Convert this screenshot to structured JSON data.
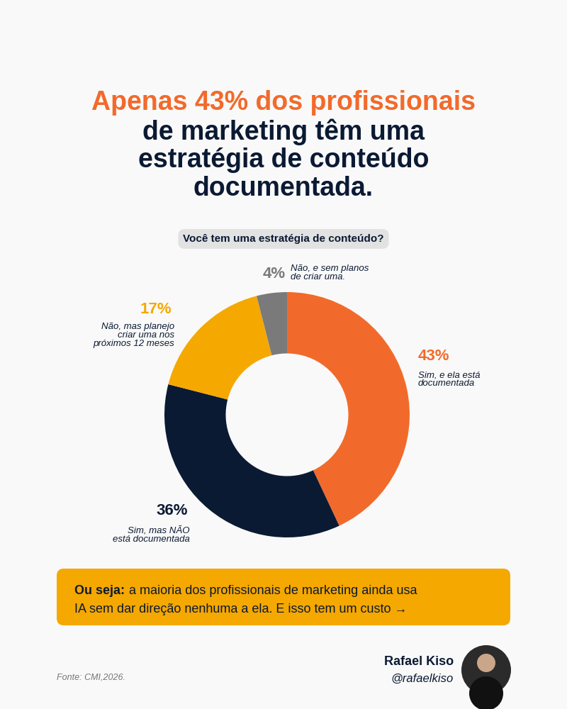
{
  "chart_data": {
    "type": "donut",
    "title": [
      "Apenas 43% dos profissionais",
      "de marketing têm uma",
      "estratégia de conteúdo",
      "documentada."
    ],
    "subtitle": "Você tem uma estratégia de conteúdo?",
    "categories": [
      "Sim, e ela está\ndocumentada",
      "Sim, mas NÃO\nestá documentada",
      "Não, mas planejo\ncriar uma nos\npróximos 12 meses",
      "Não, e sem planos\nde criar uma."
    ],
    "values": [
      43,
      36,
      17,
      4
    ],
    "value_labels": [
      "43%",
      "36%",
      "17%",
      "4%"
    ],
    "colors": [
      "#f26a2b",
      "#0b1a33",
      "#f5a800",
      "#7a7a7a"
    ],
    "data_labels": true,
    "callout": [
      "Ou seja:",
      "a maioria dos profissionais de marketing ainda usa",
      "IA sem dar direção nenhuma a ela. E isso tem um custo →"
    ],
    "source": "Fonte: CMI,2026.",
    "author": {
      "name": "Rafael Kiso",
      "handle": "@rafaelkiso"
    }
  }
}
